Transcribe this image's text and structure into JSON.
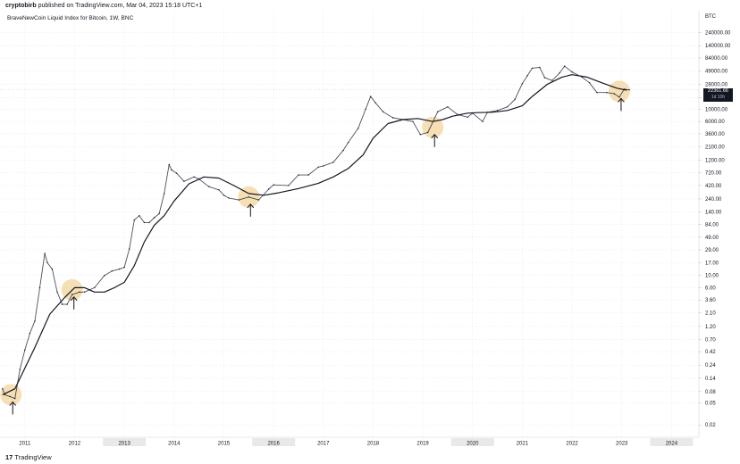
{
  "header": {
    "publisher_user": "cryptobirb",
    "publisher_rest": "published on TradingView.com, Mar 04, 2023 15:18 UTC+1",
    "chart_title": "BraveNewCoin Liquid Index for Bitcoin, 1W, BNC"
  },
  "price_tag": {
    "price": "22361.66",
    "countdown": "1d 10h"
  },
  "footer": {
    "logo_mark": "17",
    "logo_text": "TradingView"
  },
  "colors": {
    "price": "#131722",
    "ma": "#131722",
    "highlight": "#f5d9a8",
    "grid": "#e6e6e6",
    "shade": "#e9e9ea"
  },
  "chart_data": {
    "type": "line",
    "title": "BraveNewCoin Liquid Index for Bitcoin, 1W, BNC",
    "currency": "BTC",
    "y_scale": "log",
    "ylim": [
      0.012,
      600000
    ],
    "xlim": [
      2010.5,
      2024.55
    ],
    "x_ticks": [
      "2011",
      "2012",
      "2013",
      "2014",
      "2015",
      "2016",
      "2017",
      "2018",
      "2019",
      "2020",
      "2021",
      "2022",
      "2023",
      "2024"
    ],
    "x_tick_values": [
      2011,
      2012,
      2013,
      2014,
      2015,
      2016,
      2017,
      2018,
      2019,
      2020,
      2021,
      2022,
      2023,
      2024
    ],
    "x_ticks_shaded": [
      "2013",
      "2016",
      "2020",
      "2024"
    ],
    "y_ticks": [
      "240000.00",
      "140000.00",
      "84000.00",
      "49000.00",
      "28000.00",
      "16000.00",
      "10000.00",
      "6000.00",
      "3600.00",
      "2100.00",
      "1200.00",
      "720.00",
      "420.00",
      "240.00",
      "140.00",
      "84.00",
      "49.00",
      "29.00",
      "17.00",
      "10.00",
      "6.00",
      "3.60",
      "2.10",
      "1.20",
      "0.70",
      "0.42",
      "0.24",
      "0.14",
      "0.08",
      "0.05",
      "0.02"
    ],
    "y_tick_values": [
      240000,
      140000,
      84000,
      49000,
      28000,
      16000,
      10000,
      6000,
      3600,
      2100,
      1200,
      720,
      420,
      240,
      140,
      84,
      49,
      29,
      17,
      10,
      6,
      3.6,
      2.1,
      1.2,
      0.7,
      0.42,
      0.24,
      0.14,
      0.08,
      0.05,
      0.02
    ],
    "series": [
      {
        "kind": "price",
        "x": [
          2010.55,
          2010.6,
          2010.7,
          2010.8,
          2010.9,
          2011.0,
          2011.1,
          2011.2,
          2011.3,
          2011.4,
          2011.45,
          2011.55,
          2011.65,
          2011.75,
          2011.85,
          2011.95,
          2012.1,
          2012.2,
          2012.4,
          2012.6,
          2012.75,
          2012.9,
          2013.0,
          2013.1,
          2013.2,
          2013.3,
          2013.4,
          2013.5,
          2013.6,
          2013.7,
          2013.8,
          2013.9,
          2013.95,
          2014.05,
          2014.2,
          2014.4,
          2014.5,
          2014.7,
          2014.9,
          2015.0,
          2015.1,
          2015.3,
          2015.5,
          2015.7,
          2015.9,
          2016.0,
          2016.3,
          2016.5,
          2016.7,
          2016.9,
          2017.0,
          2017.2,
          2017.4,
          2017.5,
          2017.7,
          2017.85,
          2017.95,
          2018.05,
          2018.2,
          2018.4,
          2018.6,
          2018.8,
          2018.95,
          2019.1,
          2019.3,
          2019.5,
          2019.7,
          2019.9,
          2020.0,
          2020.2,
          2020.3,
          2020.5,
          2020.7,
          2020.85,
          2021.0,
          2021.1,
          2021.2,
          2021.35,
          2021.45,
          2021.6,
          2021.75,
          2021.85,
          2022.0,
          2022.2,
          2022.35,
          2022.5,
          2022.7,
          2022.85,
          2022.95,
          2023.05,
          2023.15
        ],
        "y": [
          0.09,
          0.07,
          0.065,
          0.06,
          0.2,
          0.45,
          0.9,
          1.5,
          6,
          25,
          17,
          13,
          5,
          3,
          3,
          4.5,
          5,
          5,
          6,
          10,
          12,
          13,
          14,
          30,
          100,
          120,
          90,
          90,
          110,
          130,
          300,
          1000,
          800,
          700,
          500,
          600,
          550,
          400,
          350,
          280,
          250,
          230,
          260,
          230,
          360,
          430,
          420,
          650,
          650,
          900,
          950,
          1100,
          1800,
          2500,
          4500,
          10000,
          17000,
          13000,
          9000,
          7000,
          6500,
          6000,
          3500,
          3800,
          9000,
          11000,
          8000,
          7200,
          8500,
          6000,
          8800,
          9500,
          11000,
          15000,
          29000,
          40000,
          55000,
          57000,
          37000,
          33000,
          45000,
          60000,
          47000,
          38000,
          30000,
          20000,
          20000,
          19000,
          16500,
          23000,
          22361
        ]
      },
      {
        "kind": "moving-average",
        "x": [
          2010.55,
          2010.8,
          2011.2,
          2011.5,
          2011.8,
          2012.0,
          2012.2,
          2012.4,
          2012.6,
          2012.8,
          2013.0,
          2013.2,
          2013.4,
          2013.6,
          2013.8,
          2014.0,
          2014.3,
          2014.6,
          2014.9,
          2015.2,
          2015.5,
          2015.8,
          2016.1,
          2016.5,
          2016.9,
          2017.2,
          2017.5,
          2017.8,
          2018.0,
          2018.3,
          2018.6,
          2018.9,
          2019.2,
          2019.4,
          2019.6,
          2019.9,
          2020.1,
          2020.4,
          2020.7,
          2021.0,
          2021.2,
          2021.5,
          2021.8,
          2022.0,
          2022.3,
          2022.6,
          2022.9,
          2023.1
        ],
        "y": [
          0.07,
          0.09,
          0.5,
          2,
          4,
          6,
          6,
          5,
          5,
          6,
          7.5,
          15,
          40,
          80,
          120,
          220,
          450,
          600,
          570,
          420,
          300,
          280,
          310,
          370,
          460,
          600,
          850,
          1500,
          3000,
          5500,
          6500,
          6800,
          6000,
          6500,
          7500,
          8500,
          8700,
          8800,
          9500,
          11500,
          17000,
          28000,
          38000,
          42000,
          38000,
          30000,
          24000,
          22000
        ]
      }
    ],
    "markers": [
      {
        "kind": "highlight-circle-with-up-arrow",
        "x": 2010.72,
        "y": 0.07
      },
      {
        "kind": "highlight-circle-with-up-arrow",
        "x": 2011.95,
        "y": 5.5
      },
      {
        "kind": "highlight-circle-with-up-arrow",
        "x": 2015.5,
        "y": 260
      },
      {
        "kind": "highlight-circle-with-up-arrow",
        "x": 2019.2,
        "y": 4700
      },
      {
        "kind": "highlight-circle-with-up-arrow",
        "x": 2022.95,
        "y": 21000
      }
    ],
    "last_price_line": 22361.66,
    "grid": true,
    "legend": "none"
  }
}
